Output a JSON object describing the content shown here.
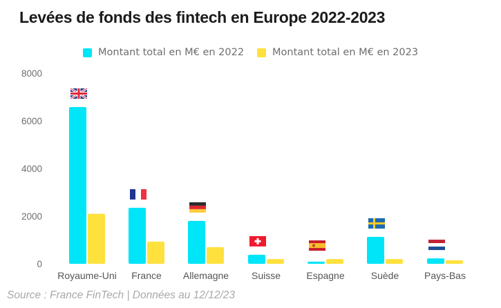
{
  "chart_data": {
    "type": "bar",
    "title": "Levées de fonds des fintech en Europe 2022-2023",
    "xlabel": "",
    "ylabel": "",
    "ylim": [
      0,
      8000
    ],
    "yticks": [
      0,
      2000,
      4000,
      6000,
      8000
    ],
    "grid": false,
    "legend_position": "top-center",
    "categories": [
      "Royaume-Uni",
      "France",
      "Allemagne",
      "Suisse",
      "Espagne",
      "Suède",
      "Pays-Bas"
    ],
    "flags": [
      "uk-flag",
      "france-flag",
      "germany-flag",
      "switzerland-flag",
      "spain-flag",
      "sweden-flag",
      "netherlands-flag"
    ],
    "series": [
      {
        "name": "Montant total en M€ en 2022",
        "color": "#00e5f7",
        "values": [
          6580,
          2350,
          1800,
          380,
          90,
          1130,
          230
        ]
      },
      {
        "name": "Montant total en M€ en 2023",
        "color": "#ffe13d",
        "values": [
          2100,
          930,
          700,
          200,
          200,
          200,
          150
        ]
      }
    ],
    "source": "Source : France FinTech | Données au 12/12/23"
  }
}
